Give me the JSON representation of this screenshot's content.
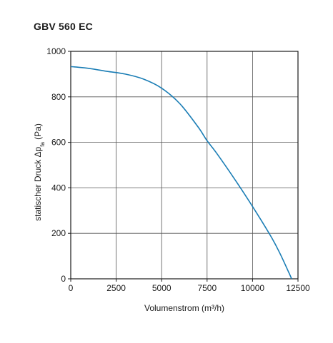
{
  "chart_data": {
    "type": "line",
    "title": "GBV 560 EC",
    "xlabel": "Volumenstrom (m³/h)",
    "ylabel": {
      "prefix": "statischer Druck Δp",
      "subscript": "fa",
      "suffix": " (Pa)"
    },
    "xlim": [
      0,
      12500
    ],
    "ylim": [
      0,
      1000
    ],
    "xticks": [
      0,
      2500,
      5000,
      7500,
      10000,
      12500
    ],
    "yticks": [
      0,
      200,
      400,
      600,
      800,
      1000
    ],
    "xtick_labels": [
      "0",
      "2500",
      "5000",
      "7500",
      "10000",
      "12500"
    ],
    "ytick_labels": [
      "0",
      "200",
      "400",
      "600",
      "800",
      "1000"
    ],
    "grid": true,
    "series": [
      {
        "color": "#1a7db5",
        "x": [
          0,
          1000,
          2000,
          3000,
          4000,
          5000,
          6000,
          7000,
          7500,
          8000,
          9000,
          10000,
          11000,
          11500,
          12000,
          12150
        ],
        "y": [
          933,
          925,
          912,
          900,
          878,
          838,
          770,
          668,
          607,
          555,
          440,
          318,
          188,
          113,
          27,
          0
        ]
      }
    ]
  }
}
